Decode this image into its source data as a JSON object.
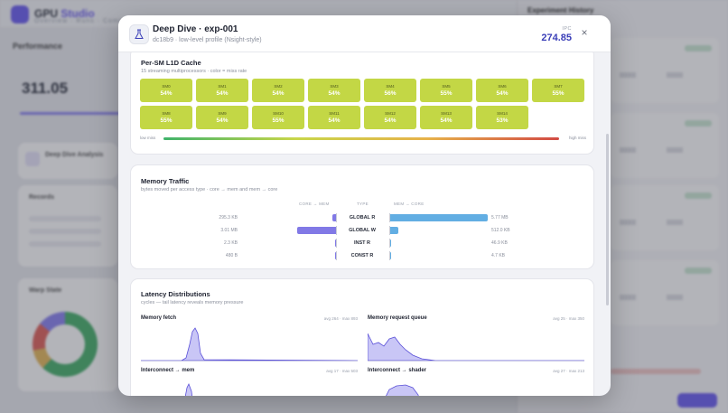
{
  "background": {
    "brand_main": "GPU",
    "brand_accent": "Studio",
    "nav": "Overview · Runs · Compare",
    "section_title": "Performance",
    "kpi_value": "311.05",
    "card1_title": "Deep Dive Analysis",
    "card2_title": "Records",
    "card3_title": "Warp State",
    "history_title": "Experiment History"
  },
  "modal": {
    "title": "Deep Dive · exp-001",
    "subtitle": "dc18b9 · low-level profile (Nsight-style)",
    "ipc_label": "IPC",
    "ipc_value": "274.85",
    "close_label": "×"
  },
  "l1d": {
    "title": "Per-SM L1D Cache",
    "subtitle": "15 streaming multiprocessors · color = miss rate",
    "cells": [
      {
        "name": "SM0",
        "value": "54%"
      },
      {
        "name": "SM1",
        "value": "54%"
      },
      {
        "name": "SM2",
        "value": "54%"
      },
      {
        "name": "SM3",
        "value": "54%"
      },
      {
        "name": "SM4",
        "value": "56%"
      },
      {
        "name": "SM5",
        "value": "55%"
      },
      {
        "name": "SM6",
        "value": "54%"
      },
      {
        "name": "SM7",
        "value": "55%"
      },
      {
        "name": "SM8",
        "value": "55%"
      },
      {
        "name": "SM9",
        "value": "54%"
      },
      {
        "name": "SM10",
        "value": "55%"
      },
      {
        "name": "SM11",
        "value": "54%"
      },
      {
        "name": "SM12",
        "value": "54%"
      },
      {
        "name": "SM13",
        "value": "54%"
      },
      {
        "name": "SM14",
        "value": "53%"
      }
    ],
    "legend_low": "low miss",
    "legend_high": "high miss",
    "cell_color": "#c3d745"
  },
  "traffic": {
    "title": "Memory Traffic",
    "subtitle": "bytes moved per access type · core → mem and mem → core",
    "col_left": "CORE → MEM",
    "col_type": "TYPE",
    "col_right": "MEM → CORE",
    "rows": [
      {
        "type": "GLOBAL R",
        "left_label": "295.3 KB",
        "left_kb": 295.3,
        "right_label": "5.77 MB",
        "right_kb": 5908
      },
      {
        "type": "GLOBAL W",
        "left_label": "3.01 MB",
        "left_kb": 3082,
        "right_label": "512.0 KB",
        "right_kb": 512
      },
      {
        "type": "INST R",
        "left_label": "2.3 KB",
        "left_kb": 2.3,
        "right_label": "46.9 KB",
        "right_kb": 46.9
      },
      {
        "type": "CONST R",
        "left_label": "480 B",
        "left_kb": 0.47,
        "right_label": "4.7 KB",
        "right_kb": 4.7
      }
    ]
  },
  "latency": {
    "title": "Latency Distributions",
    "subtitle": "cycles — tail latency reveals memory pressure",
    "charts": [
      {
        "name": "Memory fetch",
        "stats": "avg 264 · max 893",
        "shape": "fetch"
      },
      {
        "name": "Memory request queue",
        "stats": "avg 25 · max 350",
        "shape": "queue"
      },
      {
        "name": "Interconnect → mem",
        "stats": "avg 17 · max 503",
        "shape": "icmem"
      },
      {
        "name": "Interconnect → shader",
        "stats": "avg 27 · max 213",
        "shape": "icshader"
      }
    ]
  }
}
